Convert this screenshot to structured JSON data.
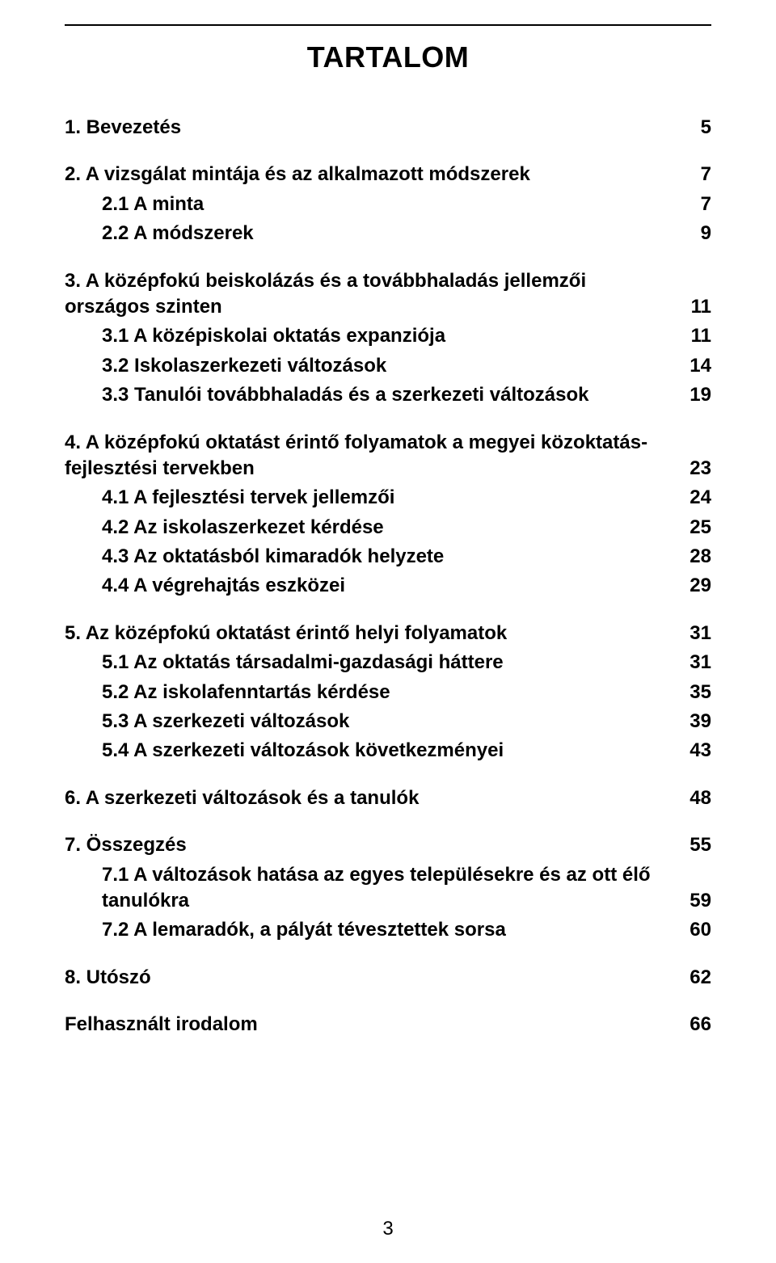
{
  "title": "TARTALOM",
  "page_number": "3",
  "colors": {
    "text": "#000000",
    "background": "#ffffff",
    "rule": "#000000"
  },
  "typography": {
    "title_fontsize_pt": 27,
    "body_fontsize_pt": 18,
    "font_family": "Arial",
    "font_weight": "bold"
  },
  "toc": [
    {
      "kind": "item",
      "level": 0,
      "label": "1. Bevezetés",
      "page": "5"
    },
    {
      "kind": "gap"
    },
    {
      "kind": "item",
      "level": 0,
      "label": "2. A vizsgálat mintája és az alkalmazott módszerek",
      "page": "7"
    },
    {
      "kind": "item",
      "level": 1,
      "label": "2.1 A minta",
      "page": "7"
    },
    {
      "kind": "item",
      "level": 1,
      "label": "2.2 A módszerek",
      "page": "9"
    },
    {
      "kind": "gap"
    },
    {
      "kind": "item",
      "level": 0,
      "label": "3. A középfokú beiskolázás és a továbbhaladás jellemzői országos szinten",
      "page": "11"
    },
    {
      "kind": "item",
      "level": 1,
      "label": "3.1 A középiskolai oktatás expanziója",
      "page": "11"
    },
    {
      "kind": "item",
      "level": 1,
      "label": "3.2 Iskolaszerkezeti változások",
      "page": "14"
    },
    {
      "kind": "item",
      "level": 1,
      "label": "3.3 Tanulói továbbhaladás és a szerkezeti változások",
      "page": "19"
    },
    {
      "kind": "gap"
    },
    {
      "kind": "item",
      "level": 0,
      "label": "4. A középfokú oktatást érintő folyamatok a  megyei közoktatás-fejlesztési tervekben",
      "page": "23"
    },
    {
      "kind": "item",
      "level": 1,
      "label": "4.1 A fejlesztési tervek jellemzői",
      "page": "24"
    },
    {
      "kind": "item",
      "level": 1,
      "label": "4.2 Az iskolaszerkezet kérdése",
      "page": "25"
    },
    {
      "kind": "item",
      "level": 1,
      "label": "4.3 Az oktatásból kimaradók helyzete",
      "page": "28"
    },
    {
      "kind": "item",
      "level": 1,
      "label": "4.4 A végrehajtás eszközei",
      "page": "29"
    },
    {
      "kind": "gap"
    },
    {
      "kind": "item",
      "level": 0,
      "label": "5. Az középfokú oktatást érintő helyi folyamatok",
      "page": "31"
    },
    {
      "kind": "item",
      "level": 1,
      "label": "5.1 Az oktatás társadalmi-gazdasági háttere",
      "page": "31"
    },
    {
      "kind": "item",
      "level": 1,
      "label": "5.2 Az iskolafenntartás kérdése",
      "page": "35"
    },
    {
      "kind": "item",
      "level": 1,
      "label": "5.3 A szerkezeti változások",
      "page": "39"
    },
    {
      "kind": "item",
      "level": 1,
      "label": "5.4 A szerkezeti változások következményei",
      "page": "43"
    },
    {
      "kind": "gap"
    },
    {
      "kind": "item",
      "level": 0,
      "label": "6. A szerkezeti változások és a tanulók",
      "page": "48"
    },
    {
      "kind": "gap"
    },
    {
      "kind": "item",
      "level": 0,
      "label": "7. Összegzés",
      "page": "55"
    },
    {
      "kind": "item",
      "level": 1,
      "label": "7.1 A változások hatása az egyes településekre és az ott élő tanulókra",
      "page": "59"
    },
    {
      "kind": "item",
      "level": 1,
      "label": "7.2 A lemaradók, a pályát tévesztettek sorsa",
      "page": "60"
    },
    {
      "kind": "gap"
    },
    {
      "kind": "item",
      "level": 0,
      "label": "8. Utószó",
      "page": "62"
    },
    {
      "kind": "gap"
    },
    {
      "kind": "item",
      "level": 0,
      "label": "Felhasznált irodalom",
      "page": "66"
    }
  ]
}
